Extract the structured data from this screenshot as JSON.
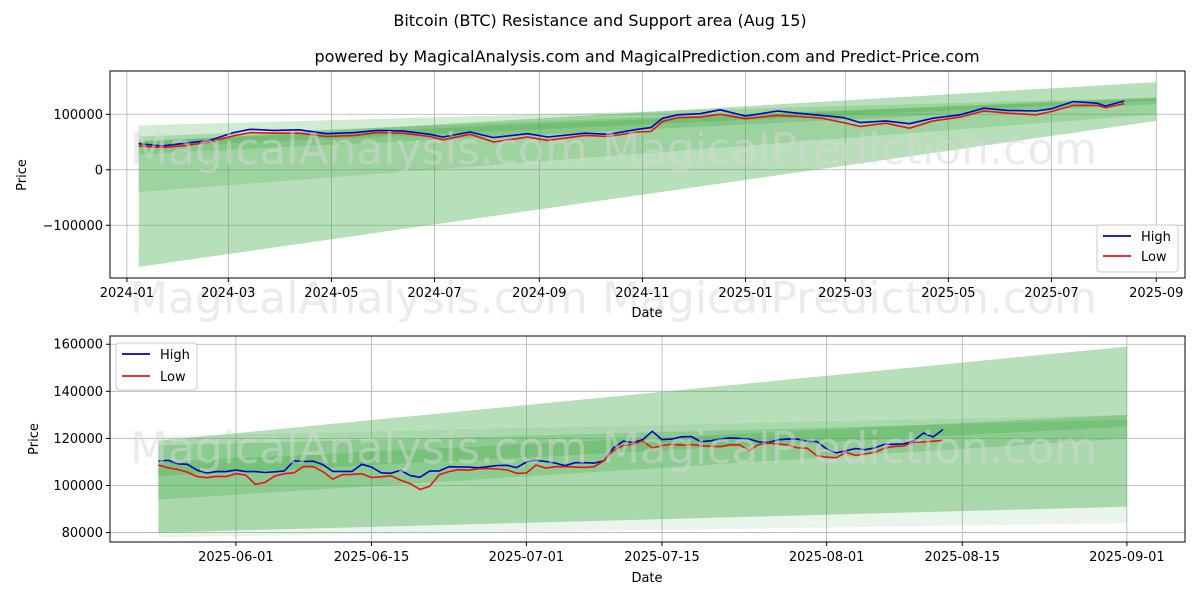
{
  "figure": {
    "title": "Bitcoin (BTC) Resistance and Support area (Aug 15)",
    "subtitle": "powered by MagicalAnalysis.com and MagicalPrediction.com and Predict-Price.com",
    "watermarks": [
      "MagicalAnalysis.com",
      "MagicalPrediction.com"
    ]
  },
  "colors": {
    "high": "#0000cc",
    "low": "#ee1111",
    "band": "#4caf50",
    "grid": "#b0b0b0"
  },
  "chart_data": [
    {
      "type": "line",
      "xlabel": "Date",
      "ylabel": "Price",
      "xlim": [
        "2023-12-22",
        "2025-09-18"
      ],
      "ylim": [
        -195000,
        178000
      ],
      "x_ticks": [
        "2024-01",
        "2024-03",
        "2024-05",
        "2024-07",
        "2024-09",
        "2024-11",
        "2025-01",
        "2025-03",
        "2025-05",
        "2025-07",
        "2025-09"
      ],
      "y_ticks": [
        -100000,
        0,
        100000
      ],
      "y_tick_labels": [
        "−100000",
        "0",
        "100000"
      ],
      "grid": true,
      "legend_position": "lower-right",
      "legend": [
        "High",
        "Low"
      ],
      "bands": [
        {
          "x0": "2024-01-08",
          "x1": "2025-09-01",
          "lower": [
            -175000,
            88000
          ],
          "upper": [
            50000,
            158000
          ],
          "opacity": 0.4
        },
        {
          "x0": "2024-01-08",
          "x1": "2025-09-01",
          "lower": [
            -40000,
            100000
          ],
          "upper": [
            80000,
            130000
          ],
          "opacity": 0.25
        },
        {
          "x0": "2024-01-08",
          "x1": "2025-09-01",
          "lower": [
            28000,
            118000
          ],
          "upper": [
            60000,
            128000
          ],
          "opacity": 0.3
        },
        {
          "x0": "2024-01-08",
          "x1": "2025-09-01",
          "lower": [
            40000,
            124000
          ],
          "upper": [
            52000,
            130000
          ],
          "opacity": 0.35
        }
      ],
      "series": [
        {
          "name": "High",
          "x": [
            "2024-01-08",
            "2024-01-22",
            "2024-02-05",
            "2024-02-19",
            "2024-03-04",
            "2024-03-14",
            "2024-03-28",
            "2024-04-12",
            "2024-04-28",
            "2024-05-15",
            "2024-05-28",
            "2024-06-12",
            "2024-06-28",
            "2024-07-06",
            "2024-07-22",
            "2024-08-05",
            "2024-08-25",
            "2024-09-06",
            "2024-09-28",
            "2024-10-12",
            "2024-10-29",
            "2024-11-06",
            "2024-11-13",
            "2024-11-22",
            "2024-12-05",
            "2024-12-17",
            "2025-01-01",
            "2025-01-20",
            "2025-02-01",
            "2025-02-15",
            "2025-02-28",
            "2025-03-10",
            "2025-03-25",
            "2025-04-08",
            "2025-04-22",
            "2025-05-08",
            "2025-05-22",
            "2025-06-05",
            "2025-06-22",
            "2025-07-01",
            "2025-07-14",
            "2025-07-28",
            "2025-08-02",
            "2025-08-13"
          ],
          "y": [
            47000,
            43000,
            48000,
            53000,
            67000,
            73000,
            71000,
            72000,
            65000,
            67000,
            71000,
            70000,
            64000,
            59000,
            68000,
            58000,
            65000,
            59000,
            66000,
            64000,
            73000,
            76000,
            93000,
            99000,
            101000,
            108000,
            97000,
            106000,
            102000,
            98000,
            94000,
            85000,
            88000,
            83000,
            93000,
            99000,
            111000,
            107000,
            106000,
            110000,
            123000,
            120000,
            115000,
            124000
          ]
        },
        {
          "name": "Low",
          "x": [
            "2024-01-08",
            "2024-01-22",
            "2024-02-05",
            "2024-02-19",
            "2024-03-04",
            "2024-03-14",
            "2024-03-28",
            "2024-04-12",
            "2024-04-28",
            "2024-05-15",
            "2024-05-28",
            "2024-06-12",
            "2024-06-28",
            "2024-07-06",
            "2024-07-22",
            "2024-08-05",
            "2024-08-25",
            "2024-09-06",
            "2024-09-28",
            "2024-10-12",
            "2024-10-29",
            "2024-11-06",
            "2024-11-13",
            "2024-11-22",
            "2024-12-05",
            "2024-12-17",
            "2025-01-01",
            "2025-01-20",
            "2025-02-01",
            "2025-02-15",
            "2025-02-28",
            "2025-03-10",
            "2025-03-25",
            "2025-04-08",
            "2025-04-22",
            "2025-05-08",
            "2025-05-22",
            "2025-06-05",
            "2025-06-22",
            "2025-07-01",
            "2025-07-14",
            "2025-07-28",
            "2025-08-02",
            "2025-08-13"
          ],
          "y": [
            43000,
            40000,
            44000,
            50000,
            61000,
            67000,
            66000,
            66000,
            60000,
            62000,
            67000,
            66000,
            60000,
            54000,
            64000,
            50000,
            59000,
            53000,
            62000,
            60000,
            68000,
            69000,
            87000,
            94000,
            95000,
            100000,
            92000,
            98000,
            96000,
            93000,
            85000,
            78000,
            84000,
            75000,
            88000,
            95000,
            106000,
            102000,
            99000,
            105000,
            116000,
            116000,
            112000,
            119000
          ]
        }
      ]
    },
    {
      "type": "line",
      "xlabel": "Date",
      "ylabel": "Price",
      "xlim": [
        "2025-05-19",
        "2025-09-07"
      ],
      "ylim": [
        76000,
        163500
      ],
      "x_ticks": [
        "2025-06-01",
        "2025-06-15",
        "2025-07-01",
        "2025-07-15",
        "2025-08-01",
        "2025-08-15",
        "2025-09-01"
      ],
      "y_ticks": [
        80000,
        100000,
        120000,
        140000,
        160000
      ],
      "grid": true,
      "legend_position": "upper-left",
      "legend": [
        "High",
        "Low"
      ],
      "bands": [
        {
          "x0": "2025-05-24",
          "x1": "2025-09-01",
          "lower": [
            80000,
            91000
          ],
          "upper": [
            119000,
            159000
          ],
          "opacity": 0.4
        },
        {
          "x0": "2025-05-24",
          "x1": "2025-09-01",
          "lower": [
            78000,
            84000
          ],
          "upper": [
            121000,
            130000
          ],
          "opacity": 0.12
        },
        {
          "x0": "2025-05-24",
          "x1": "2025-09-01",
          "lower": [
            94000,
            120000
          ],
          "upper": [
            117000,
            128000
          ],
          "opacity": 0.3
        },
        {
          "x0": "2025-05-24",
          "x1": "2025-09-01",
          "lower": [
            104000,
            125000
          ],
          "upper": [
            110000,
            130000
          ],
          "opacity": 0.35
        }
      ],
      "series": [
        {
          "name": "High",
          "x": [
            "2025-05-24",
            "2025-05-25",
            "2025-05-26",
            "2025-05-27",
            "2025-05-28",
            "2025-05-29",
            "2025-05-30",
            "2025-05-31",
            "2025-06-01",
            "2025-06-02",
            "2025-06-03",
            "2025-06-04",
            "2025-06-05",
            "2025-06-06",
            "2025-06-07",
            "2025-06-08",
            "2025-06-09",
            "2025-06-10",
            "2025-06-11",
            "2025-06-12",
            "2025-06-13",
            "2025-06-14",
            "2025-06-15",
            "2025-06-16",
            "2025-06-17",
            "2025-06-18",
            "2025-06-19",
            "2025-06-20",
            "2025-06-21",
            "2025-06-22",
            "2025-06-23",
            "2025-06-24",
            "2025-06-25",
            "2025-06-26",
            "2025-06-27",
            "2025-06-28",
            "2025-06-29",
            "2025-06-30",
            "2025-07-01",
            "2025-07-02",
            "2025-07-03",
            "2025-07-04",
            "2025-07-05",
            "2025-07-06",
            "2025-07-07",
            "2025-07-08",
            "2025-07-09",
            "2025-07-10",
            "2025-07-11",
            "2025-07-12",
            "2025-07-13",
            "2025-07-14",
            "2025-07-15",
            "2025-07-16",
            "2025-07-17",
            "2025-07-18",
            "2025-07-19",
            "2025-07-20",
            "2025-07-21",
            "2025-07-22",
            "2025-07-23",
            "2025-07-24",
            "2025-07-25",
            "2025-07-26",
            "2025-07-27",
            "2025-07-28",
            "2025-07-29",
            "2025-07-30",
            "2025-07-31",
            "2025-08-01",
            "2025-08-02",
            "2025-08-03",
            "2025-08-04",
            "2025-08-05",
            "2025-08-06",
            "2025-08-07",
            "2025-08-08",
            "2025-08-09",
            "2025-08-10",
            "2025-08-11",
            "2025-08-12",
            "2025-08-13"
          ],
          "y": [
            110300,
            110700,
            109200,
            109000,
            106500,
            105300,
            105900,
            105900,
            106600,
            105900,
            105900,
            105500,
            105800,
            106200,
            110500,
            110200,
            110300,
            108800,
            106000,
            106000,
            106000,
            109000,
            107800,
            105400,
            105200,
            106500,
            104200,
            103500,
            106100,
            106200,
            108000,
            107900,
            107800,
            107500,
            108000,
            108500,
            108600,
            107600,
            110000,
            110700,
            110200,
            109500,
            108400,
            109700,
            109700,
            109500,
            110500,
            116000,
            118800,
            118200,
            119500,
            123000,
            119500,
            119700,
            120700,
            120800,
            118600,
            119000,
            119700,
            120200,
            120000,
            119700,
            118500,
            118300,
            119400,
            119800,
            119700,
            118800,
            118600,
            115500,
            113900,
            114800,
            115700,
            115200,
            116000,
            117500,
            117500,
            117700,
            119000,
            122300,
            120600,
            123800
          ]
        },
        {
          "name": "Low",
          "x": [
            "2025-05-24",
            "2025-05-25",
            "2025-05-26",
            "2025-05-27",
            "2025-05-28",
            "2025-05-29",
            "2025-05-30",
            "2025-05-31",
            "2025-06-01",
            "2025-06-02",
            "2025-06-03",
            "2025-06-04",
            "2025-06-05",
            "2025-06-06",
            "2025-06-07",
            "2025-06-08",
            "2025-06-09",
            "2025-06-10",
            "2025-06-11",
            "2025-06-12",
            "2025-06-13",
            "2025-06-14",
            "2025-06-15",
            "2025-06-16",
            "2025-06-17",
            "2025-06-18",
            "2025-06-19",
            "2025-06-20",
            "2025-06-21",
            "2025-06-22",
            "2025-06-23",
            "2025-06-24",
            "2025-06-25",
            "2025-06-26",
            "2025-06-27",
            "2025-06-28",
            "2025-06-29",
            "2025-06-30",
            "2025-07-01",
            "2025-07-02",
            "2025-07-03",
            "2025-07-04",
            "2025-07-05",
            "2025-07-06",
            "2025-07-07",
            "2025-07-08",
            "2025-07-09",
            "2025-07-10",
            "2025-07-11",
            "2025-07-12",
            "2025-07-13",
            "2025-07-14",
            "2025-07-15",
            "2025-07-16",
            "2025-07-17",
            "2025-07-18",
            "2025-07-19",
            "2025-07-20",
            "2025-07-21",
            "2025-07-22",
            "2025-07-23",
            "2025-07-24",
            "2025-07-25",
            "2025-07-26",
            "2025-07-27",
            "2025-07-28",
            "2025-07-29",
            "2025-07-30",
            "2025-07-31",
            "2025-08-01",
            "2025-08-02",
            "2025-08-03",
            "2025-08-04",
            "2025-08-05",
            "2025-08-06",
            "2025-08-07",
            "2025-08-08",
            "2025-08-09",
            "2025-08-10",
            "2025-08-11",
            "2025-08-12",
            "2025-08-13"
          ],
          "y": [
            108700,
            107500,
            106800,
            105700,
            103800,
            103300,
            103900,
            103800,
            105000,
            104500,
            100500,
            101300,
            104000,
            105000,
            105400,
            108100,
            108000,
            105800,
            102700,
            104600,
            104700,
            105000,
            103400,
            103700,
            104100,
            102300,
            100800,
            98300,
            99600,
            104600,
            105900,
            106700,
            106500,
            107100,
            107200,
            107000,
            106600,
            105200,
            105300,
            108700,
            107400,
            108000,
            108000,
            107800,
            107700,
            108000,
            110500,
            115000,
            117000,
            117500,
            119000,
            115900,
            117000,
            117500,
            117100,
            117400,
            116900,
            116700,
            116500,
            117300,
            117300,
            114900,
            117400,
            118000,
            117600,
            117200,
            116000,
            115800,
            112600,
            112000,
            111800,
            114100,
            112800,
            113400,
            114200,
            115900,
            116600,
            116800,
            118400,
            118500,
            118800,
            119100
          ]
        }
      ]
    }
  ]
}
